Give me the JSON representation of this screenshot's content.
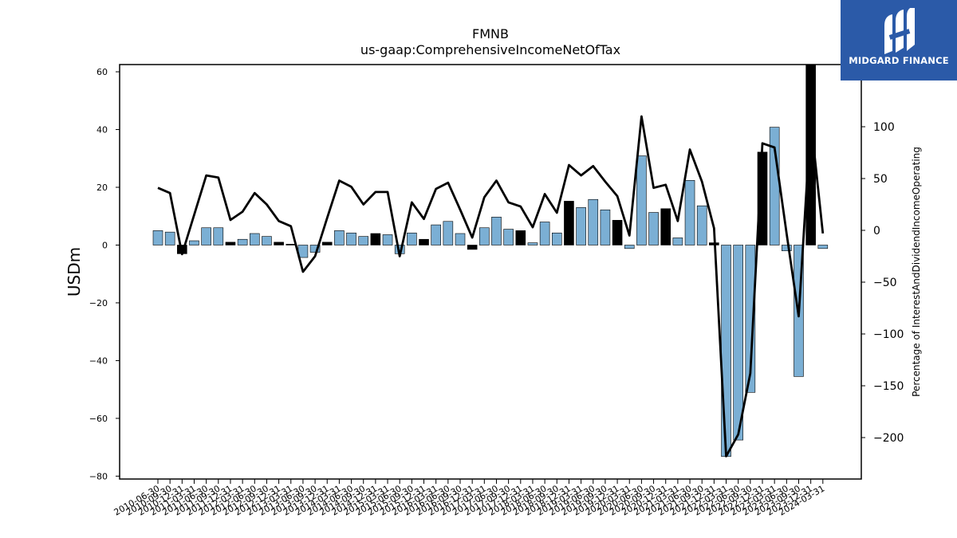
{
  "chart_data": {
    "type": "bar",
    "title": "FMNB",
    "subtitle": "us-gaap:ComprehensiveIncomeNetOfTax",
    "ylabel": "USDm",
    "y2label": "Percentage of InterestAndDividendIncomeOperating",
    "ylim": [
      -81,
      62.5
    ],
    "y2lim": [
      -240,
      160
    ],
    "yticks": [
      -80,
      -60,
      -40,
      -20,
      0,
      20,
      40,
      60
    ],
    "y2ticks": [
      -200,
      -150,
      -100,
      -50,
      0,
      50,
      100
    ],
    "grid": false,
    "categories": [
      "2010-06-30",
      "2010-09-30",
      "2010-12-31",
      "2011-03-31",
      "2011-06-30",
      "2011-09-30",
      "2011-12-31",
      "2012-03-31",
      "2012-06-30",
      "2012-09-30",
      "2012-12-31",
      "2013-03-31",
      "2013-06-30",
      "2013-09-30",
      "2013-12-31",
      "2014-03-31",
      "2014-06-30",
      "2014-09-30",
      "2014-12-31",
      "2015-03-31",
      "2015-06-30",
      "2015-09-30",
      "2015-12-31",
      "2016-03-31",
      "2016-06-30",
      "2016-09-30",
      "2016-12-31",
      "2017-03-31",
      "2017-06-30",
      "2017-09-30",
      "2017-12-31",
      "2018-03-31",
      "2018-06-30",
      "2018-09-30",
      "2018-12-31",
      "2019-03-31",
      "2019-06-30",
      "2019-09-30",
      "2019-12-31",
      "2020-03-31",
      "2020-06-30",
      "2020-09-30",
      "2020-12-31",
      "2021-03-31",
      "2021-06-30",
      "2021-09-30",
      "2021-12-31",
      "2022-03-31",
      "2022-06-30",
      "2022-09-30",
      "2022-12-31",
      "2023-03-31",
      "2023-06-30",
      "2023-09-30",
      "2023-12-31",
      "2024-03-31"
    ],
    "tick_labels": [
      "2010-06-30",
      "2010-09-30",
      "2010-12-31",
      "2011-03-31",
      "2011-06-30",
      "2011-09-30",
      "2011-12-31",
      "2012-03-31",
      "2012-06-30",
      "2012-09-30",
      "2012-12-31",
      "2013-03-31",
      "2013-06-30",
      "2013-09-30",
      "2013-12-31",
      "2014-03-31",
      "2014-06-30",
      "2014-09-30",
      "2014-12-31",
      "2015-03-31",
      "2015-06-30",
      "2015-09-30",
      "2015-12-31",
      "2016-03-31",
      "2016-06-30",
      "2016-09-30",
      "2016-12-31",
      "2017-03-31",
      "2017-06-30",
      "2017-09-30",
      "2017-12-31",
      "2018-03-31",
      "2018-06-30",
      "2018-09-30",
      "2018-12-31",
      "2019-03-31",
      "2019-06-30",
      "2019-09-30",
      "2019-12-31",
      "2020-03-31",
      "2020-06-30",
      "2020-09-30",
      "2020-12-31",
      "2021-03-31",
      "2021-06-30",
      "2021-09-30",
      "2021-12-31",
      "2022-03-31",
      "2022-06-30",
      "2022-09-30",
      "2022-12-31",
      "2023-03-31",
      "2023-06-30",
      "2023-09-30",
      "2023-12-31",
      "2024-03-31"
    ],
    "series": [
      {
        "type": "bar",
        "axis": "left",
        "values": [
          5.0,
          4.5,
          -3.0,
          1.5,
          6.0,
          6.0,
          1.0,
          2.0,
          4.0,
          3.0,
          1.0,
          0.3,
          -4.3,
          -2.5,
          1.0,
          5.0,
          4.2,
          3.0,
          4.0,
          3.6,
          -3.0,
          4.2,
          2.0,
          7.0,
          8.2,
          4.0,
          -1.5,
          6.0,
          9.7,
          5.5,
          5.0,
          0.8,
          8.0,
          4.2,
          15.2,
          13.0,
          15.8,
          12.2,
          8.6,
          -1.2,
          30.9,
          11.3,
          12.6,
          2.5,
          22.4,
          13.6,
          0.8,
          -73.2,
          -67.5,
          -51.0,
          32.2,
          40.8,
          -2.0,
          -45.5,
          62.5,
          -1.2
        ],
        "colors": [
          "#7bafd4",
          "#7bafd4",
          "#000000",
          "#7bafd4",
          "#7bafd4",
          "#7bafd4",
          "#000000",
          "#7bafd4",
          "#7bafd4",
          "#7bafd4",
          "#000000",
          "#000000",
          "#7bafd4",
          "#7bafd4",
          "#000000",
          "#7bafd4",
          "#7bafd4",
          "#7bafd4",
          "#000000",
          "#7bafd4",
          "#7bafd4",
          "#7bafd4",
          "#000000",
          "#7bafd4",
          "#7bafd4",
          "#7bafd4",
          "#000000",
          "#7bafd4",
          "#7bafd4",
          "#7bafd4",
          "#000000",
          "#7bafd4",
          "#7bafd4",
          "#7bafd4",
          "#000000",
          "#7bafd4",
          "#7bafd4",
          "#7bafd4",
          "#000000",
          "#7bafd4",
          "#7bafd4",
          "#7bafd4",
          "#000000",
          "#7bafd4",
          "#7bafd4",
          "#7bafd4",
          "#000000",
          "#7bafd4",
          "#7bafd4",
          "#7bafd4",
          "#000000",
          "#7bafd4",
          "#7bafd4",
          "#7bafd4",
          "#000000",
          "#7bafd4"
        ]
      },
      {
        "type": "line",
        "axis": "right",
        "color": "#000000",
        "values": [
          41,
          36,
          -23,
          15,
          53,
          51,
          10,
          18,
          36,
          25,
          9,
          4,
          -40,
          -25,
          12,
          48,
          42,
          25,
          37,
          37,
          -25,
          27,
          11,
          40,
          46,
          20,
          -7,
          32,
          48,
          27,
          23,
          3,
          35,
          17,
          63,
          53,
          62,
          47,
          33,
          -5,
          110,
          41,
          44,
          9,
          78,
          47,
          2,
          -218,
          -197,
          -138,
          84,
          80,
          -3,
          -83,
          107,
          -3
        ]
      }
    ]
  },
  "brand": {
    "name": "MIDGARD FINANCE",
    "icon": "midgard-logo-icon",
    "background": "#2b5aa8"
  }
}
